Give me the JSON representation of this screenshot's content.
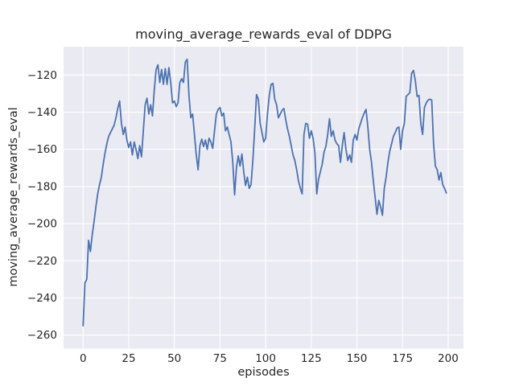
{
  "figure": {
    "background": "#ffffff",
    "axes_background": "#eaeaf2",
    "grid_color": "#ffffff",
    "text_color": "#262626"
  },
  "chart_data": {
    "type": "line",
    "title": "moving_average_rewards_eval of DDPG",
    "xlabel": "episodes",
    "ylabel": "moving_average_rewards_eval",
    "grid": true,
    "legend": false,
    "line_color": "#4c72b0",
    "line_width": 1.8,
    "x_ticks": [
      0,
      25,
      50,
      75,
      100,
      125,
      150,
      175,
      200
    ],
    "x_tick_labels": [
      "0",
      "25",
      "50",
      "75",
      "100",
      "125",
      "150",
      "175",
      "200"
    ],
    "y_ticks": [
      -120,
      -140,
      -160,
      -180,
      -200,
      -220,
      -240,
      -260
    ],
    "y_tick_labels": [
      "−120",
      "−140",
      "−160",
      "−180",
      "−200",
      "−220",
      "−240",
      "−260"
    ],
    "xlim": [
      -10.7,
      208.4
    ],
    "ylim": [
      -267.3,
      -104.7
    ],
    "series": [
      {
        "name": "moving_average_rewards_eval",
        "x_start": 0,
        "x_step": 1,
        "y": [
          -255,
          -232,
          -230,
          -209,
          -215,
          -206,
          -199,
          -191,
          -184,
          -179,
          -175,
          -168,
          -162,
          -157,
          -153,
          -151,
          -149,
          -147,
          -143,
          -138,
          -134,
          -146,
          -152,
          -148,
          -155,
          -159,
          -156,
          -163,
          -156,
          -160,
          -165,
          -158,
          -164,
          -150,
          -136,
          -132.5,
          -141,
          -136,
          -142,
          -128,
          -117,
          -114.5,
          -124,
          -117,
          -125,
          -116.5,
          -125,
          -116,
          -124,
          -135,
          -134,
          -137,
          -135,
          -124,
          -122,
          -124,
          -113,
          -111.5,
          -131,
          -143,
          -141,
          -152,
          -163,
          -171,
          -158,
          -154.5,
          -158.5,
          -155,
          -160,
          -154,
          -156,
          -159.5,
          -150,
          -141,
          -138.5,
          -137.5,
          -142,
          -140.5,
          -150,
          -148,
          -152,
          -156,
          -167,
          -184.5,
          -170,
          -163.5,
          -169,
          -162.5,
          -172,
          -179.5,
          -175,
          -181,
          -179,
          -166,
          -149,
          -130.5,
          -133,
          -146,
          -151,
          -156,
          -154,
          -141,
          -131,
          -125,
          -124.5,
          -133,
          -136,
          -143,
          -141,
          -139,
          -138,
          -144,
          -149,
          -153,
          -158,
          -163,
          -166,
          -171,
          -177,
          -181,
          -184,
          -152,
          -146,
          -146.5,
          -154,
          -150,
          -154,
          -162,
          -184,
          -176,
          -172,
          -168,
          -161.5,
          -158.5,
          -152,
          -143.5,
          -153,
          -150,
          -155,
          -157,
          -158,
          -167,
          -158,
          -151,
          -160,
          -166,
          -163,
          -167,
          -155,
          -152,
          -155,
          -149,
          -146,
          -143,
          -140.5,
          -138.5,
          -148,
          -160,
          -167,
          -177,
          -186,
          -195,
          -187.5,
          -191,
          -195.5,
          -181,
          -175,
          -167,
          -161,
          -157,
          -153,
          -151,
          -148.5,
          -148,
          -160,
          -150,
          -146,
          -131.5,
          -130.5,
          -129.5,
          -119,
          -117.5,
          -123,
          -131.5,
          -131,
          -146,
          -152,
          -137.5,
          -135,
          -133.5,
          -133,
          -133.5,
          -157,
          -169,
          -171,
          -176.5,
          -172.5,
          -179,
          -181,
          -183.5
        ]
      }
    ]
  }
}
